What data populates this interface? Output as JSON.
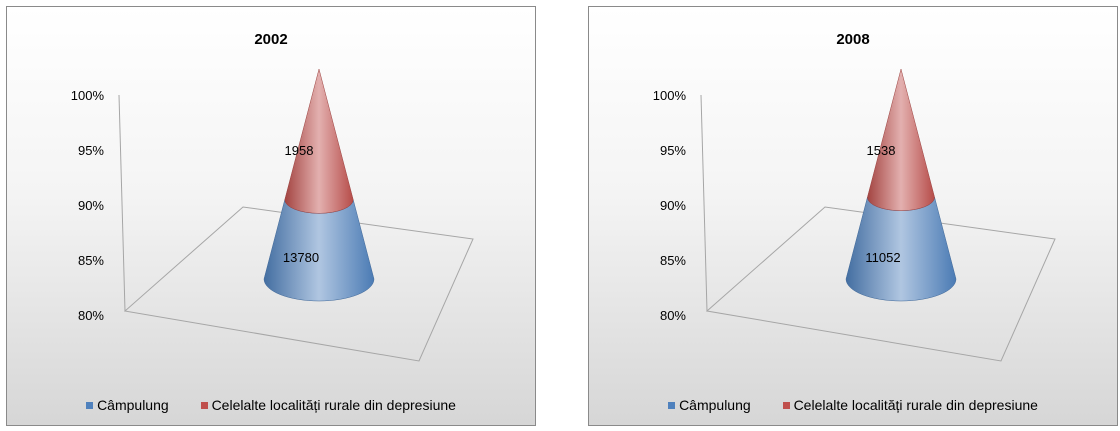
{
  "chart_data": [
    {
      "type": "cone",
      "title": "2002",
      "yticks": [
        "80%",
        "85%",
        "90%",
        "95%",
        "100%"
      ],
      "ylim": [
        0.8,
        1.0
      ],
      "series": [
        {
          "name": "Câmpulung",
          "value": 13780,
          "color": "#4f81bd"
        },
        {
          "name": "Celelalte localități rurale din depresiune",
          "value": 1958,
          "color": "#c0504d"
        }
      ],
      "legend": "bottom"
    },
    {
      "type": "cone",
      "title": "2008",
      "yticks": [
        "80%",
        "85%",
        "90%",
        "95%",
        "100%"
      ],
      "ylim": [
        0.8,
        1.0
      ],
      "series": [
        {
          "name": "Câmpulung",
          "value": 11052,
          "color": "#4f81bd"
        },
        {
          "name": "Celelalte localități rurale din depresiune",
          "value": 1538,
          "color": "#c0504d"
        }
      ],
      "legend": "bottom"
    }
  ]
}
